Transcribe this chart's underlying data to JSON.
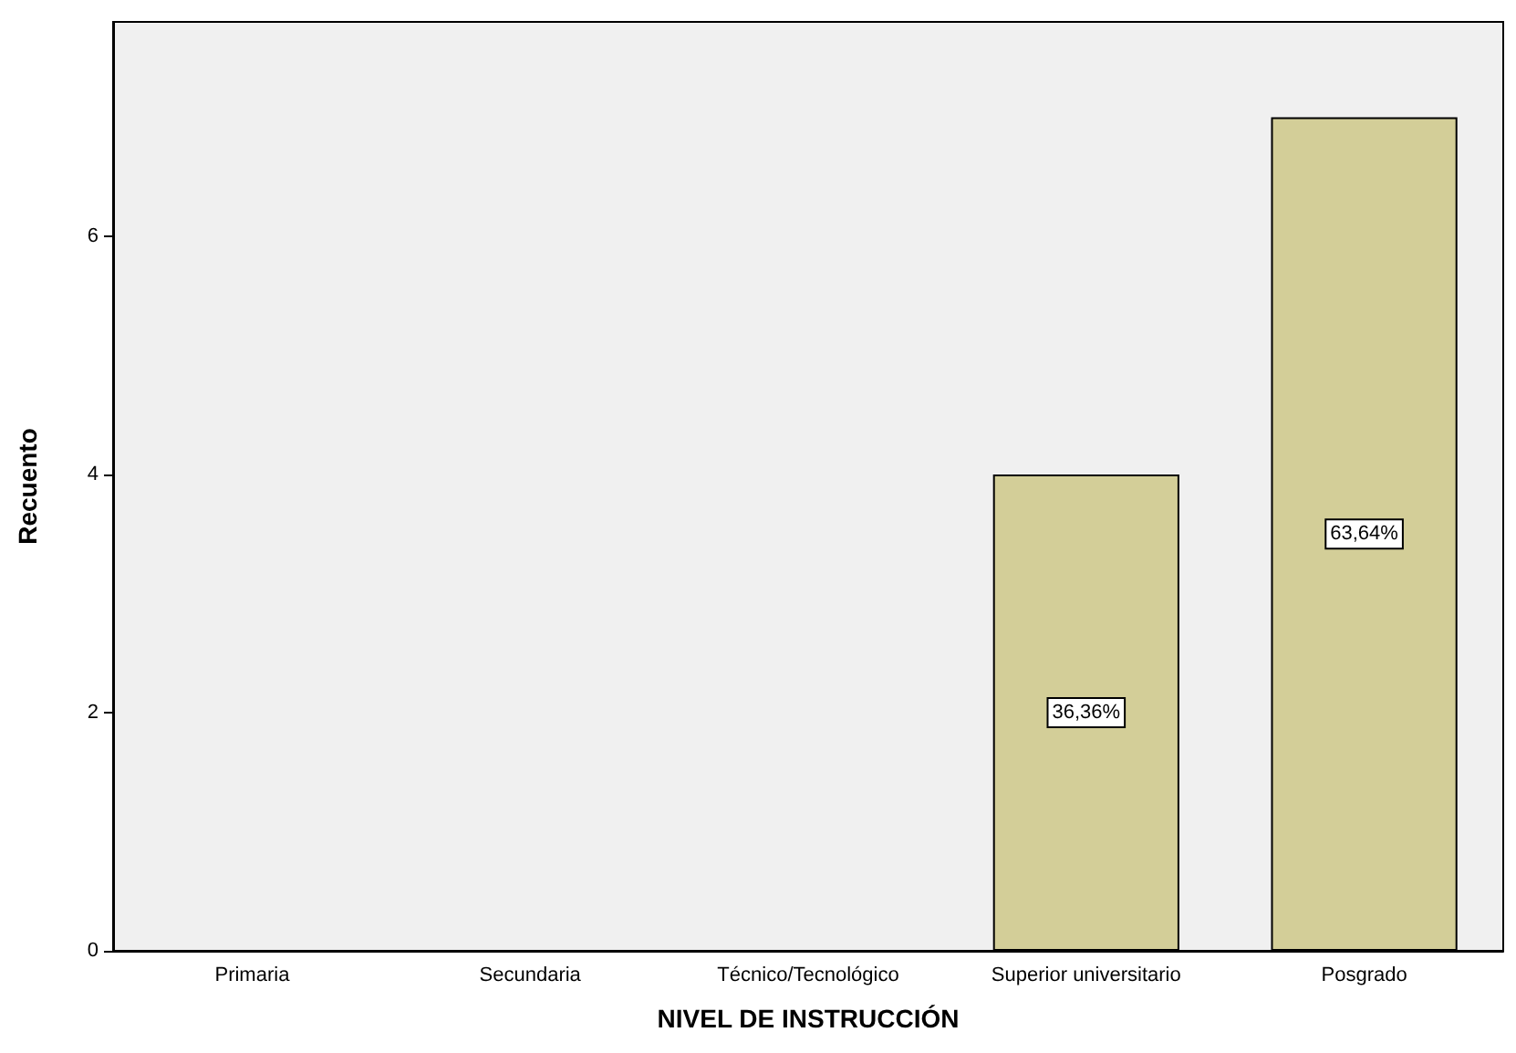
{
  "chart_data": {
    "type": "bar",
    "xlabel": "NIVEL DE INSTRUCCIÓN",
    "ylabel": "Recuento",
    "categories": [
      "Primaria",
      "Secundaria",
      "Técnico/Tecnológico",
      "Superior universitario",
      "Posgrado"
    ],
    "values": [
      0,
      0,
      0,
      4,
      7
    ],
    "annotations": [
      {
        "text": "36,36%",
        "x": "Superior universitario",
        "y": 2
      },
      {
        "text": "63,64%",
        "x": "Posgrado",
        "y": 3.5
      }
    ],
    "color": "#d3ce98",
    "ylim": [
      0,
      7.8
    ],
    "yticks": [
      0,
      2,
      4,
      6
    ],
    "grid": false
  }
}
